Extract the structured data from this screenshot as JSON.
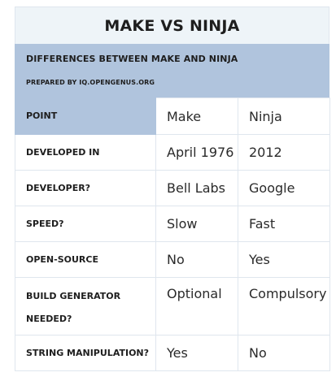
{
  "title": "MAKE VS NINJA",
  "header": {
    "heading": "DIFFERENCES BETWEEN MAKE AND NINJA",
    "subheading": "PREPARED BY IQ.OPENGENUS.ORG"
  },
  "columns": {
    "point": "POINT",
    "col1": "Make",
    "col2": "Ninja"
  },
  "rows": [
    {
      "label": "DEVELOPED IN",
      "make": "April 1976",
      "ninja": "2012"
    },
    {
      "label": "DEVELOPER?",
      "make": "Bell Labs",
      "ninja": "Google"
    },
    {
      "label": "SPEED?",
      "make": "Slow",
      "ninja": "Fast"
    },
    {
      "label": "OPEN-SOURCE",
      "make": "No",
      "ninja": "Yes"
    },
    {
      "label_line1": "BUILD GENERATOR",
      "label_line2": "NEEDED?",
      "make": "Optional",
      "ninja": "Compulsory"
    },
    {
      "label": "STRING MANIPULATION?",
      "make": "Yes",
      "ninja": "No"
    }
  ]
}
